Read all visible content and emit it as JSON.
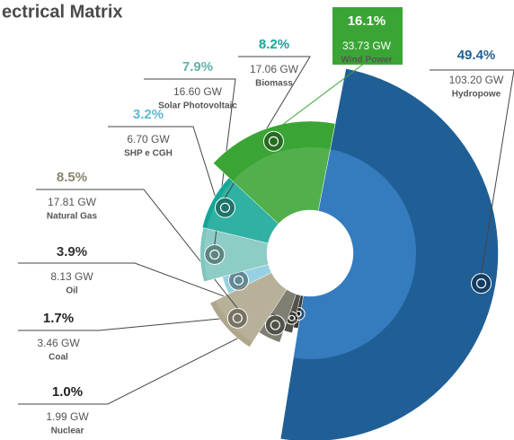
{
  "chart_data": {
    "type": "pie",
    "title": "ectrical Matrix",
    "categories": [
      "Hydropowe",
      "Nuclear",
      "Coal",
      "Oil",
      "Natural Gas",
      "SHP e CGH",
      "Solar Photovoltaic",
      "Biomass",
      "Wind Power"
    ],
    "values": [
      49.4,
      1.0,
      1.7,
      3.9,
      8.5,
      3.2,
      7.9,
      8.2,
      16.1
    ],
    "value_labels": [
      "49.4%",
      "1.0%",
      "1.7%",
      "3.9%",
      "8.5%",
      "3.2%",
      "7.9%",
      "8.2%",
      "16.1%"
    ],
    "capacity": [
      103.2,
      1.99,
      3.46,
      8.13,
      17.81,
      6.7,
      16.6,
      17.06,
      33.73
    ],
    "capacity_labels": [
      "103.20 GW",
      "1.99 GW",
      "3.46 GW",
      "8.13 GW",
      "17.81 GW",
      "6.70 GW",
      "16.60 GW",
      "17.06 GW",
      "33.73 GW"
    ],
    "colors": [
      "#1f5f96",
      "#1c1c1a",
      "#3b3b33",
      "#6e6d60",
      "#aea78c",
      "#88cbe0",
      "#7ec6bd",
      "#14a798",
      "#3aa534"
    ]
  }
}
